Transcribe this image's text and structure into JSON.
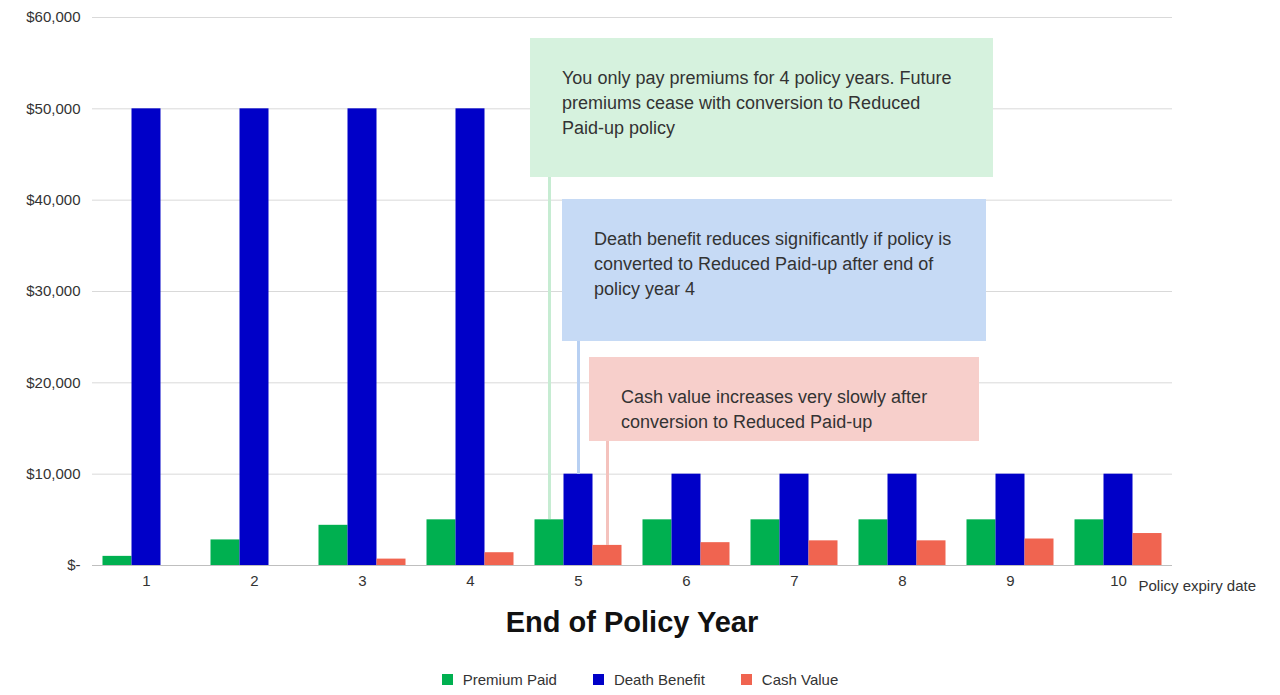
{
  "chart_data": {
    "type": "bar",
    "categories": [
      1,
      2,
      3,
      4,
      5,
      6,
      7,
      8,
      9,
      10
    ],
    "xlabel": "End of Policy Year",
    "xtick_note": "Policy expiry date",
    "series": [
      {
        "name": "Premium Paid",
        "color": "#00b050",
        "values": [
          1000,
          2800,
          4400,
          5000,
          5000,
          5000,
          5000,
          5000,
          5000,
          5000
        ]
      },
      {
        "name": "Death Benefit",
        "color": "#0000c8",
        "values": [
          50000,
          50000,
          50000,
          50000,
          10000,
          10000,
          10000,
          10000,
          10000,
          10000
        ]
      },
      {
        "name": "Cash Value",
        "color": "#f06450",
        "values": [
          0,
          0,
          700,
          1400,
          2200,
          2500,
          2700,
          2700,
          2900,
          3500
        ]
      }
    ],
    "ylim": [
      0,
      60000
    ],
    "yticks": [
      {
        "value": 0,
        "label": "$-"
      },
      {
        "value": 10000,
        "label": "$10,000"
      },
      {
        "value": 20000,
        "label": "$20,000"
      },
      {
        "value": 30000,
        "label": "$30,000"
      },
      {
        "value": 40000,
        "label": "$40,000"
      },
      {
        "value": 50000,
        "label": "$50,000"
      },
      {
        "value": 60000,
        "label": "$60,000"
      }
    ],
    "grid": true,
    "legend": "bottom",
    "annotations": [
      "You only pay premiums for 4 policy years. Future premiums cease with conversion to Reduced Paid-up policy",
      "Death benefit reduces significantly if policy is converted to Reduced Paid-up after end of policy year 4",
      "Cash value increases very slowly after conversion to Reduced Paid-up"
    ]
  }
}
